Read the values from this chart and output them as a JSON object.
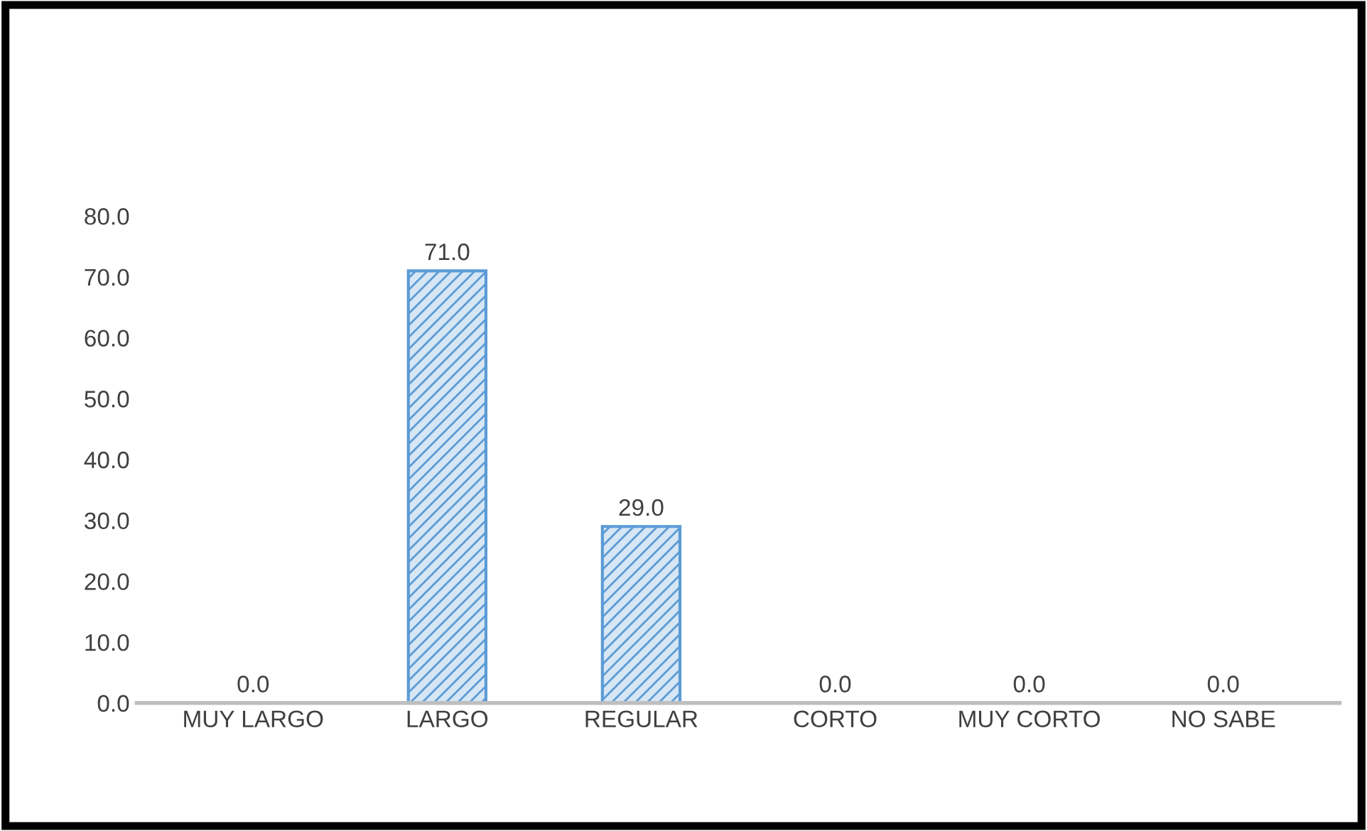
{
  "chart_data": {
    "type": "bar",
    "categories": [
      "MUY LARGO",
      "LARGO",
      "REGULAR",
      "CORTO",
      "MUY CORTO",
      "NO SABE"
    ],
    "values": [
      0.0,
      71.0,
      29.0,
      0.0,
      0.0,
      0.0
    ],
    "value_labels": [
      "0.0",
      "71.0",
      "29.0",
      "0.0",
      "0.0",
      "0.0"
    ],
    "color": "#5b9bd5",
    "ylim": [
      0,
      80
    ],
    "yticks": [
      {
        "value": 0,
        "label": "0.0"
      },
      {
        "value": 10,
        "label": "10.0"
      },
      {
        "value": 20,
        "label": "20.0"
      },
      {
        "value": 30,
        "label": "30.0"
      },
      {
        "value": 40,
        "label": "40.0"
      },
      {
        "value": 50,
        "label": "50.0"
      },
      {
        "value": 60,
        "label": "60.0"
      },
      {
        "value": 70,
        "label": "70.0"
      },
      {
        "value": 80,
        "label": "80.0"
      }
    ],
    "grid": false
  }
}
